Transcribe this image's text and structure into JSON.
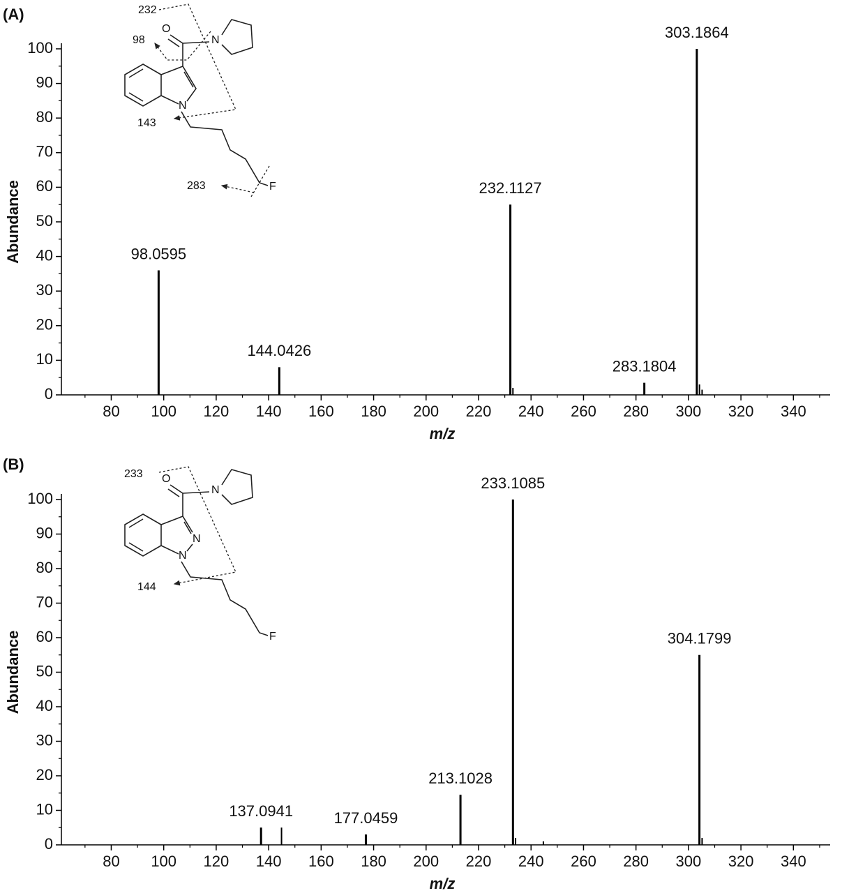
{
  "chart_data": [
    {
      "type": "stem",
      "title": "(A)",
      "x_label": "m/z",
      "y_label": "Abundance",
      "peaks": {
        "x": [
          98.0595,
          144.0426,
          232.1127,
          283.1804,
          303.1864
        ],
        "values": [
          36,
          8,
          55,
          3.5,
          100
        ]
      },
      "minor_peaks": {
        "x": [
          233.1,
          304.2,
          305.2
        ],
        "values": [
          2,
          3,
          1.5
        ]
      },
      "color": "#000000",
      "xlim": [
        61,
        354
      ],
      "ylim": [
        0,
        100
      ],
      "xticks": [
        80,
        100,
        120,
        140,
        160,
        180,
        200,
        220,
        240,
        260,
        280,
        300,
        320,
        340
      ],
      "yticks": [
        0,
        10,
        20,
        30,
        40,
        50,
        60,
        70,
        80,
        90,
        100
      ],
      "structure_labels": [
        "232",
        "98",
        "143",
        "283"
      ],
      "atoms": [
        "O",
        "N",
        "N",
        "F"
      ]
    },
    {
      "type": "stem",
      "title": "(B)",
      "x_label": "m/z",
      "y_label": "Abundance",
      "peaks": {
        "x": [
          137.0941,
          177.0459,
          213.1028,
          233.1085,
          304.1799
        ],
        "values": [
          5,
          3,
          14.5,
          100,
          55
        ]
      },
      "minor_peaks": {
        "x": [
          144.9,
          234.1,
          244.7,
          305.2
        ],
        "values": [
          5,
          2,
          1,
          2
        ]
      },
      "color": "#000000",
      "xlim": [
        61,
        354
      ],
      "ylim": [
        0,
        100
      ],
      "xticks": [
        80,
        100,
        120,
        140,
        160,
        180,
        200,
        220,
        240,
        260,
        280,
        300,
        320,
        340
      ],
      "yticks": [
        0,
        10,
        20,
        30,
        40,
        50,
        60,
        70,
        80,
        90,
        100
      ],
      "structure_labels": [
        "233",
        "144"
      ],
      "atoms": [
        "O",
        "N",
        "N",
        "N",
        "F"
      ]
    }
  ]
}
